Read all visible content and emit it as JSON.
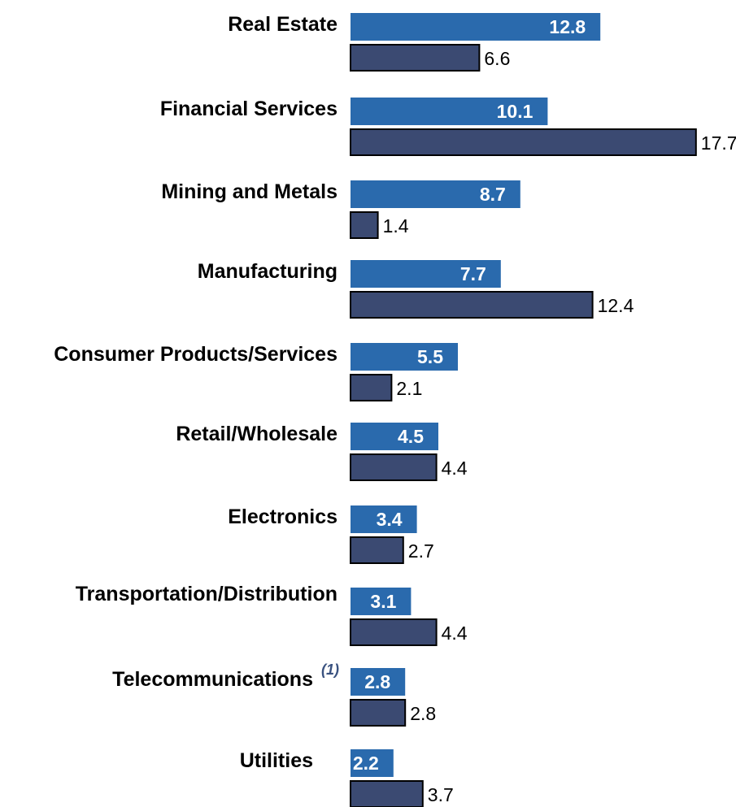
{
  "chart_data": {
    "type": "bar",
    "orientation": "horizontal",
    "title": "",
    "xlabel": "",
    "ylabel": "",
    "categories": [
      "Real Estate",
      "Financial Services",
      "Mining and Metals",
      "Manufacturing",
      "Consumer Products/Services",
      "Retail/Wholesale",
      "Electronics",
      "Transportation/Distribution",
      "Telecommunications",
      "Utilities"
    ],
    "footnotes": {
      "Telecommunications": "(1)"
    },
    "series": [
      {
        "values": [
          12.8,
          10.1,
          8.7,
          7.7,
          5.5,
          4.5,
          3.4,
          3.1,
          2.8,
          2.2
        ],
        "color": "#2a6aad"
      },
      {
        "values": [
          6.6,
          17.7,
          1.4,
          12.4,
          2.1,
          4.4,
          2.7,
          4.4,
          2.8,
          3.7
        ],
        "color": "#3b4a72"
      }
    ],
    "xlim": [
      0,
      17.7
    ],
    "grid": false,
    "legend": "none"
  }
}
